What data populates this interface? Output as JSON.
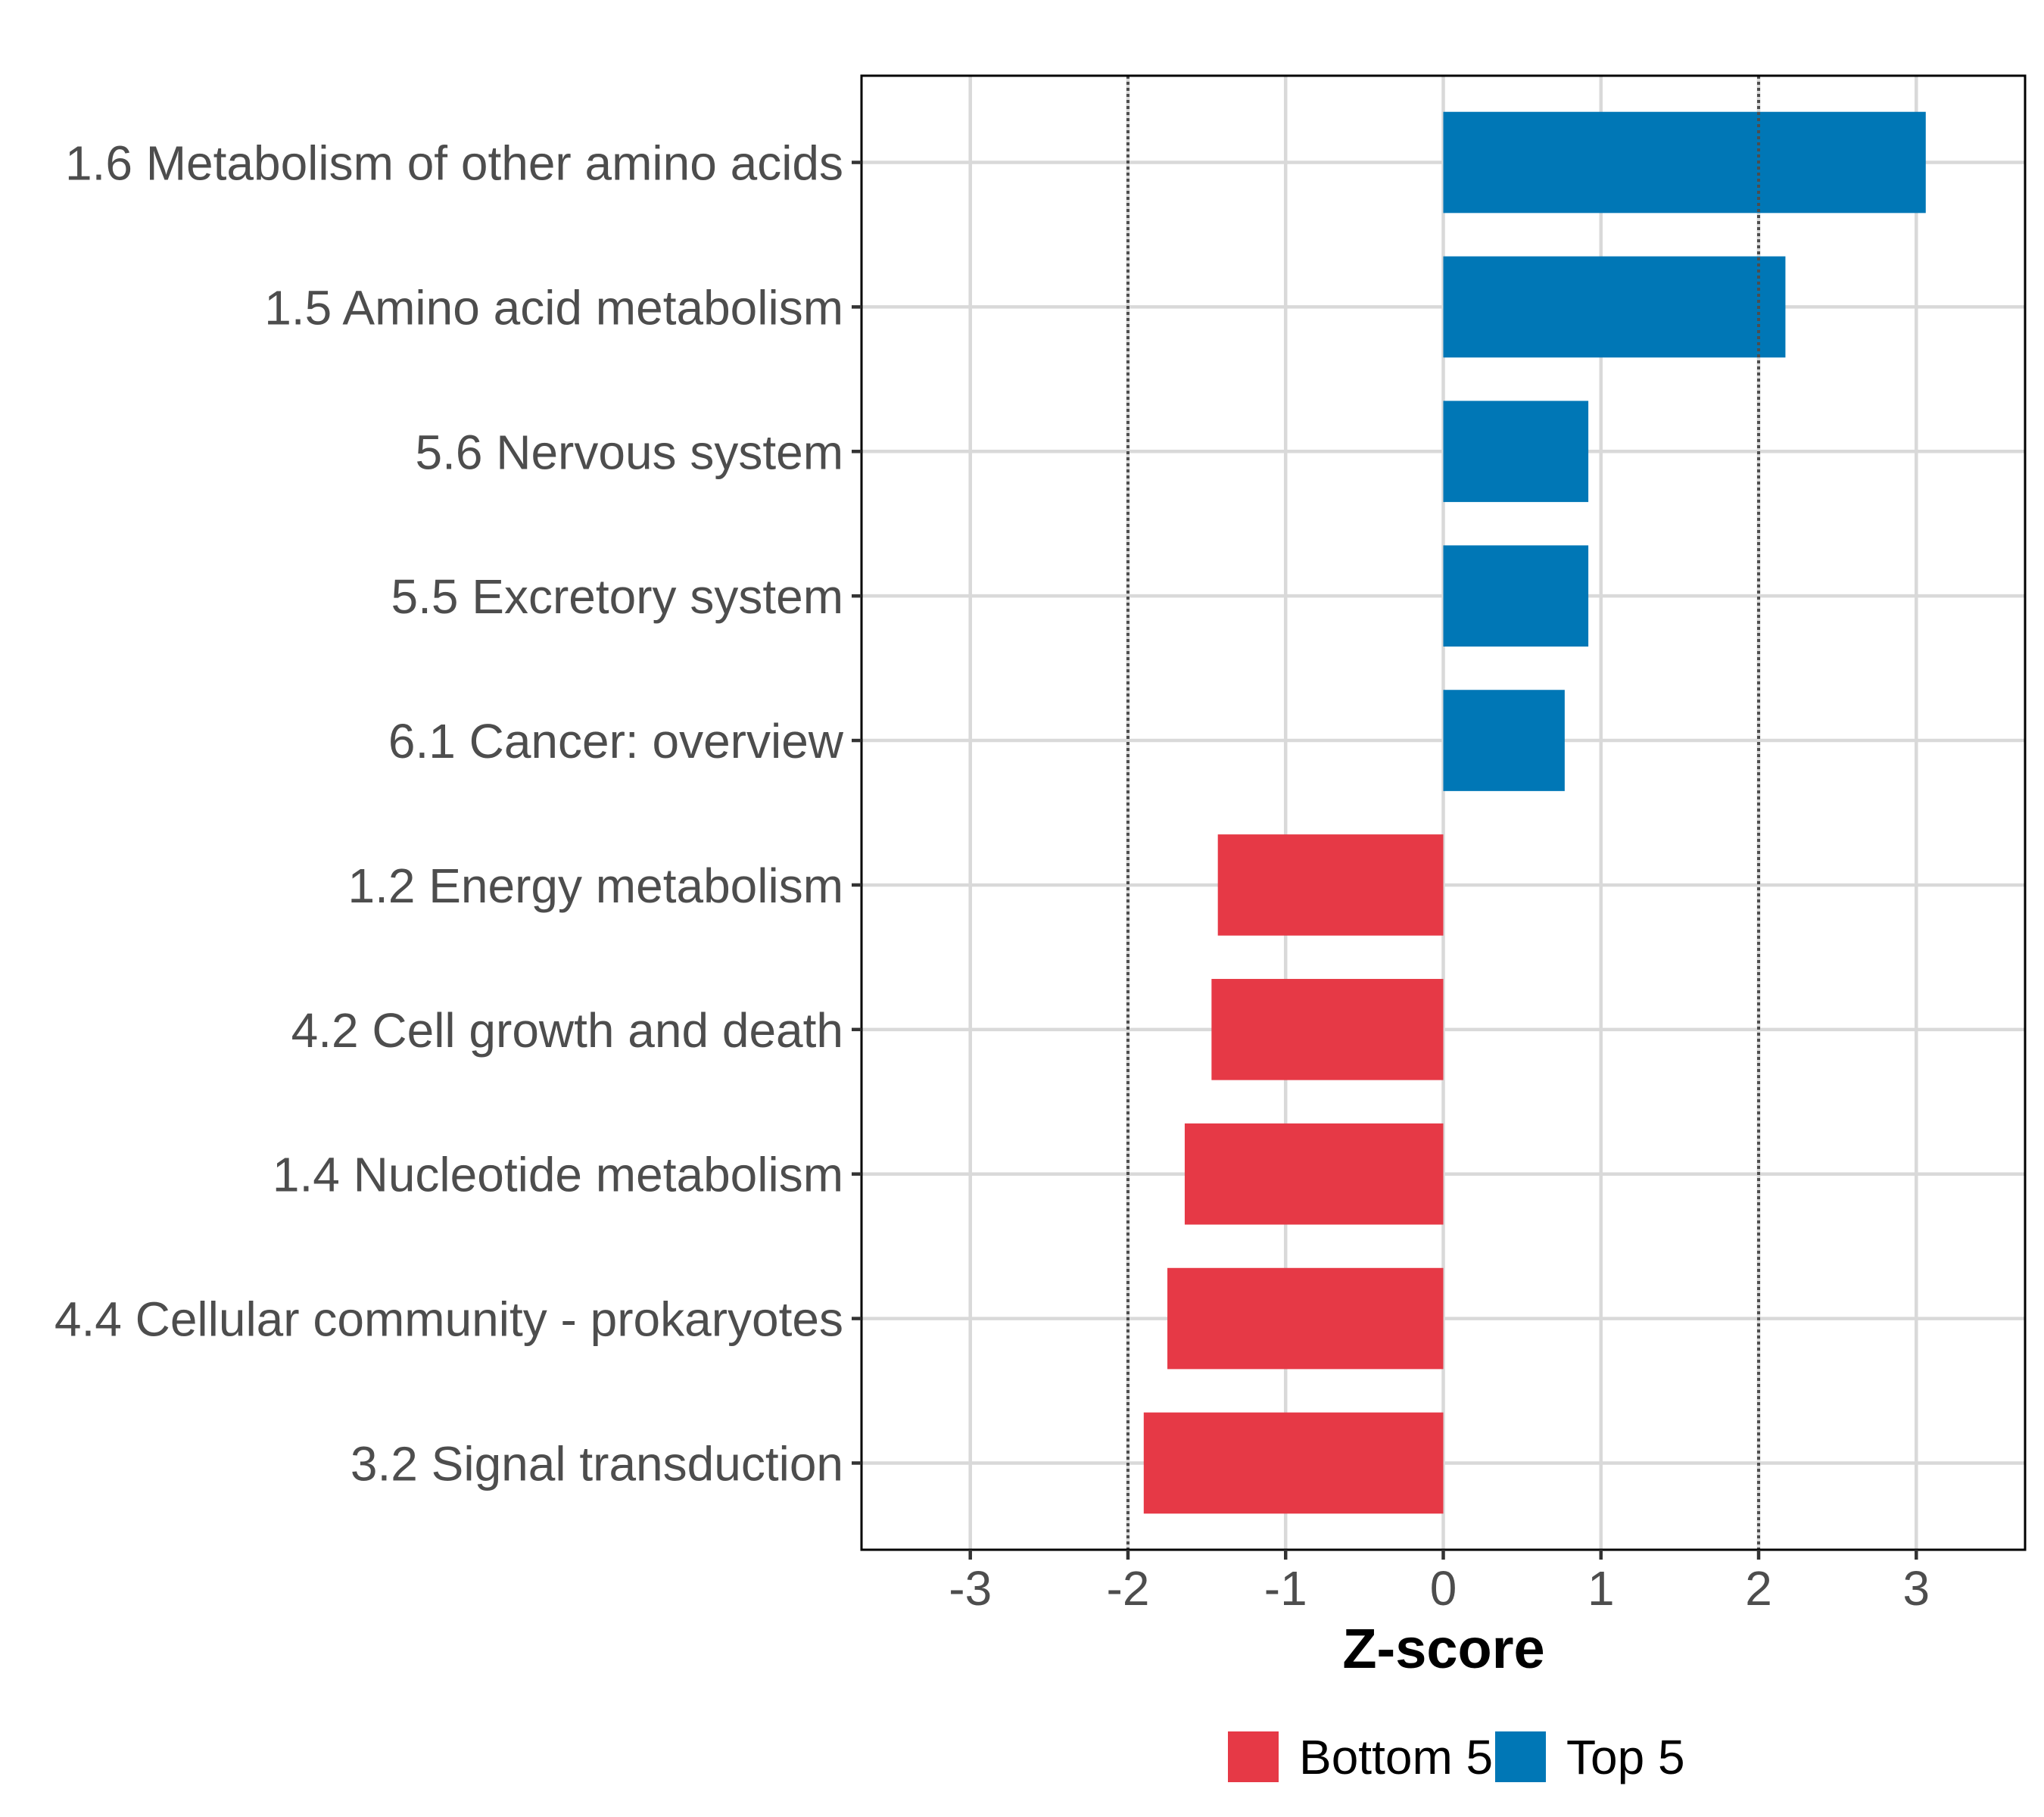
{
  "chart_data": {
    "type": "bar",
    "orientation": "horizontal",
    "title": "",
    "xlabel": "Z-score",
    "ylabel": "",
    "xlim": [
      -3.69,
      3.69
    ],
    "xticks": [
      -3,
      -2,
      -1,
      0,
      1,
      2,
      3
    ],
    "xtick_labels": [
      "-3",
      "-2",
      "-1",
      "0",
      "1",
      "2",
      "3"
    ],
    "reference_lines": [
      -2,
      2
    ],
    "grid": true,
    "categories": [
      "1.6 Metabolism of other amino acids",
      "1.5 Amino acid metabolism",
      "5.6 Nervous system",
      "5.5 Excretory system",
      "6.1 Cancer: overview",
      "1.2 Energy metabolism",
      "4.2 Cell growth and death",
      "1.4 Nucleotide metabolism",
      "4.4 Cellular community - prokaryotes",
      "3.2 Signal transduction"
    ],
    "values": [
      3.06,
      2.17,
      0.92,
      0.92,
      0.77,
      -1.43,
      -1.47,
      -1.64,
      -1.75,
      -1.9
    ],
    "groups": [
      "Top 5",
      "Top 5",
      "Top 5",
      "Top 5",
      "Top 5",
      "Bottom 5",
      "Bottom 5",
      "Bottom 5",
      "Bottom 5",
      "Bottom 5"
    ],
    "legend": {
      "placement": "bottom",
      "entries": [
        {
          "label": "Bottom 5",
          "color": "#E63946"
        },
        {
          "label": "Top 5",
          "color": "#0077B6"
        }
      ]
    },
    "colors": {
      "Top 5": "#0077B6",
      "Bottom 5": "#E63946",
      "grid": "#d9d9d9",
      "reference_line": "#4d4d4d",
      "panel_border": "#000000",
      "tick_text": "#4d4d4d"
    }
  }
}
